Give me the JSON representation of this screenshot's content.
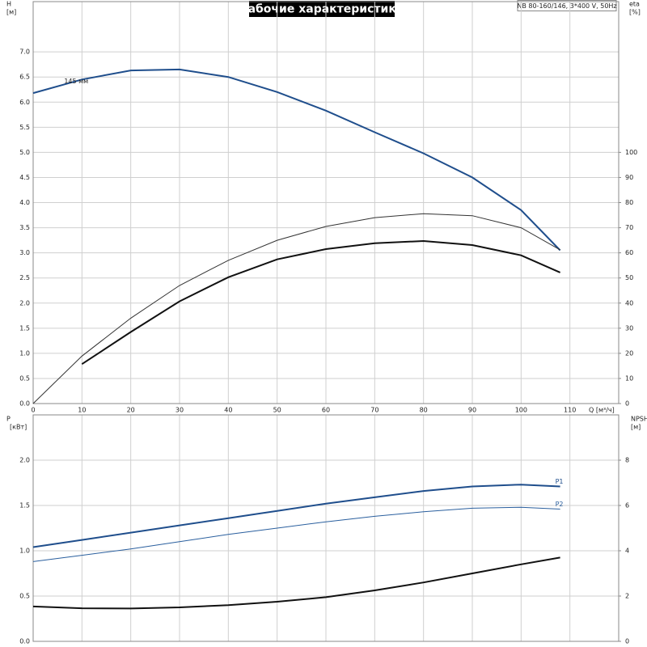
{
  "title": "Рабочие характеристики",
  "model": "NB 80-160/146, 3*400 V, 50Hz",
  "chart_data": [
    {
      "type": "line",
      "ylabel": "H",
      "yunit": "[м]",
      "y2label": "eta",
      "y2unit": "[%]",
      "xlabel": "Q [м³/ч]",
      "annotation": "145 мм",
      "grid": true,
      "xlim": [
        0,
        120
      ],
      "xticks": [
        0,
        10,
        20,
        30,
        40,
        50,
        60,
        70,
        80,
        90,
        100,
        110
      ],
      "ylim": [
        0,
        8
      ],
      "yticks": [
        {
          "value": 0,
          "label": "0.0"
        },
        0.5,
        {
          "value": 1,
          "label": "1.0"
        },
        1.5,
        {
          "value": 2,
          "label": "2.0"
        },
        2.5,
        {
          "value": 3,
          "label": "3.0"
        },
        3.5,
        {
          "value": 4,
          "label": "4.0"
        },
        4.5,
        {
          "value": 5,
          "label": "5.0"
        },
        5.5,
        {
          "value": 6,
          "label": "6.0"
        },
        6.5,
        {
          "value": 7,
          "label": "7.0"
        }
      ],
      "y2lim": [
        0,
        160
      ],
      "y2ticks": [
        0,
        10,
        20,
        30,
        40,
        50,
        60,
        70,
        80,
        90,
        100
      ],
      "x": [
        0,
        10,
        20,
        30,
        40,
        50,
        60,
        70,
        80,
        90,
        100,
        108
      ],
      "series": [
        {
          "color": "#1f4e8c",
          "width": 2,
          "values": [
            6.18,
            6.45,
            6.63,
            6.65,
            6.5,
            6.2,
            5.83,
            5.4,
            4.98,
            4.5,
            3.85,
            3.05
          ]
        },
        {
          "color": "#333333",
          "width": 1,
          "axis": "y2",
          "values": [
            0,
            18.9,
            34,
            47,
            57,
            65,
            70.5,
            74,
            75.6,
            74.8,
            70,
            61.2
          ]
        },
        {
          "color": "#111111",
          "width": 2,
          "axis": "y2",
          "values": [
            null,
            15.7,
            28.5,
            40.7,
            50.3,
            57.4,
            61.5,
            63.8,
            64.7,
            63.1,
            59,
            52.2
          ]
        }
      ]
    },
    {
      "type": "line",
      "ylabel": "P",
      "yunit": "[кВт]",
      "y2label": "NPSH",
      "y2unit": "[м]",
      "grid": true,
      "xlim": [
        0,
        120
      ],
      "xticks": [
        0,
        10,
        20,
        30,
        40,
        50,
        60,
        70,
        80,
        90,
        100,
        110
      ],
      "ylim": [
        0,
        2.5
      ],
      "yticks": [
        {
          "value": 0,
          "label": "0.0"
        },
        0.5,
        {
          "value": 1,
          "label": "1.0"
        },
        1.5,
        {
          "value": 2,
          "label": "2.0"
        }
      ],
      "y2lim": [
        0,
        10
      ],
      "y2ticks": [
        0,
        2,
        4,
        6,
        8
      ],
      "x": [
        0,
        10,
        20,
        30,
        40,
        50,
        60,
        70,
        80,
        90,
        100,
        108
      ],
      "series": [
        {
          "name": "P1",
          "color": "#1f4e8c",
          "width": 2,
          "values": [
            1.04,
            1.12,
            1.2,
            1.28,
            1.36,
            1.44,
            1.52,
            1.59,
            1.66,
            1.71,
            1.73,
            1.71
          ]
        },
        {
          "name": "P2",
          "color": "#2a5f9e",
          "width": 1,
          "values": [
            0.88,
            0.95,
            1.02,
            1.1,
            1.18,
            1.25,
            1.32,
            1.38,
            1.43,
            1.47,
            1.48,
            1.46
          ]
        },
        {
          "color": "#111111",
          "width": 2,
          "axis": "y2",
          "values": [
            1.54,
            1.46,
            1.45,
            1.5,
            1.6,
            1.75,
            1.95,
            2.25,
            2.6,
            3.0,
            3.4,
            3.7
          ]
        }
      ]
    }
  ]
}
